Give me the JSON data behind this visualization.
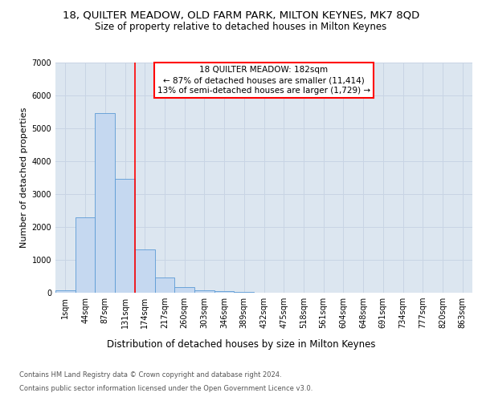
{
  "title_line1": "18, QUILTER MEADOW, OLD FARM PARK, MILTON KEYNES, MK7 8QD",
  "title_line2": "Size of property relative to detached houses in Milton Keynes",
  "xlabel": "Distribution of detached houses by size in Milton Keynes",
  "ylabel": "Number of detached properties",
  "footer_line1": "Contains HM Land Registry data © Crown copyright and database right 2024.",
  "footer_line2": "Contains public sector information licensed under the Open Government Licence v3.0.",
  "bar_labels": [
    "1sqm",
    "44sqm",
    "87sqm",
    "131sqm",
    "174sqm",
    "217sqm",
    "260sqm",
    "303sqm",
    "346sqm",
    "389sqm",
    "432sqm",
    "475sqm",
    "518sqm",
    "561sqm",
    "604sqm",
    "648sqm",
    "691sqm",
    "734sqm",
    "777sqm",
    "820sqm",
    "863sqm"
  ],
  "bar_values": [
    70,
    2300,
    5450,
    3450,
    1320,
    460,
    160,
    85,
    50,
    20,
    0,
    0,
    0,
    0,
    0,
    0,
    0,
    0,
    0,
    0,
    0
  ],
  "bar_color": "#c5d8f0",
  "bar_edge_color": "#5b9bd5",
  "grid_color": "#c8d4e4",
  "background_color": "#dce6f0",
  "ylim": [
    0,
    7000
  ],
  "yticks": [
    0,
    1000,
    2000,
    3000,
    4000,
    5000,
    6000,
    7000
  ],
  "pct_smaller": 87,
  "n_smaller": 11414,
  "pct_larger": 13,
  "n_larger": 1729,
  "vline_x_index": 4.0,
  "title_fontsize": 9.5,
  "subtitle_fontsize": 8.5,
  "axis_label_fontsize": 8.5,
  "ylabel_fontsize": 8,
  "tick_fontsize": 7,
  "annotation_fontsize": 7.5,
  "footer_fontsize": 6
}
